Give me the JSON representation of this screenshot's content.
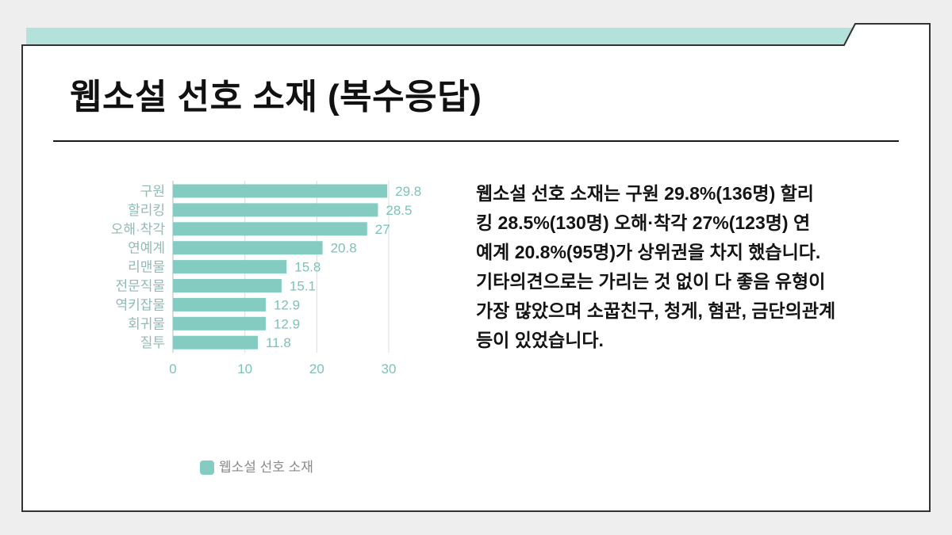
{
  "slide": {
    "title": "웹소설 선호 소재 (복수응답)",
    "accent_color": "#b3e2da",
    "summary": {
      "lines": [
        "웹소설 선호 소재는 구원 29.8%(136명) 할리",
        "킹 28.5%(130명) 오해·착각 27%(123명) 연",
        "예계 20.8%(95명)가 상위권을 차지 했습니다.",
        "기타의견으로는 가리는 것 없이 다 좋음 유형이",
        "가장 많았으며 소꿉친구, 청게, 혐관, 금단의관계",
        "등이 있었습니다."
      ]
    }
  },
  "chart_data": {
    "type": "bar",
    "orientation": "horizontal",
    "title": "",
    "xlabel": "",
    "ylabel": "",
    "categories": [
      "구원",
      "할리킹",
      "오해·착각",
      "연예계",
      "리맨물",
      "전문직물",
      "역키잡물",
      "회귀물",
      "질투"
    ],
    "series": [
      {
        "name": "웹소설 선호 소재",
        "values": [
          29.8,
          28.5,
          27,
          20.8,
          15.8,
          15.1,
          12.9,
          12.9,
          11.8
        ],
        "color": "#84ccc1"
      }
    ],
    "xlim": [
      0,
      30
    ],
    "xticks": [
      0,
      10,
      20,
      30
    ],
    "grid": true,
    "data_labels": true,
    "legend": "bottom"
  }
}
